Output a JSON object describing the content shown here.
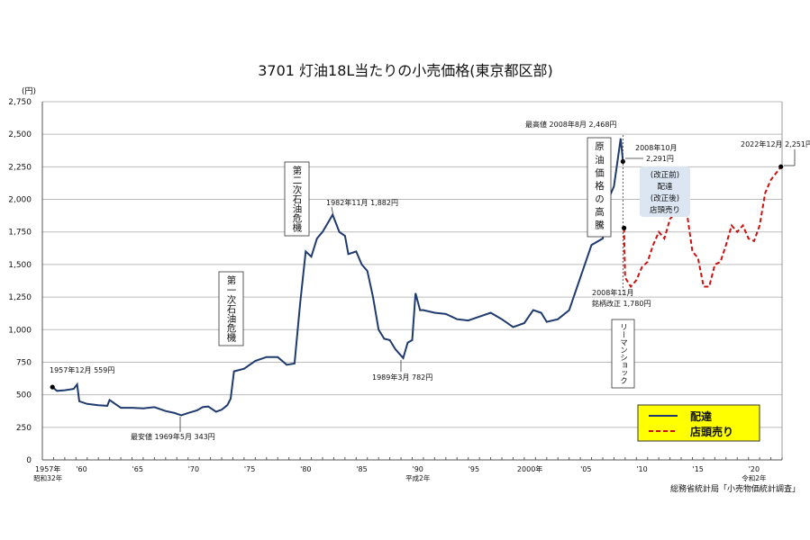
{
  "chart_data": {
    "type": "line",
    "title": "3701 灯油18L当たりの小売価格(東京都区部)",
    "ylabel": "(円)",
    "ylim": [
      0,
      2750
    ],
    "xlim": [
      1957,
      2023
    ],
    "grid": true,
    "yticks": [
      0,
      250,
      500,
      750,
      1000,
      1250,
      1500,
      1750,
      2000,
      2250,
      2500,
      2750
    ],
    "ytick_labels": [
      "0",
      "250",
      "500",
      "750",
      "1,000",
      "1,250",
      "1,500",
      "1,750",
      "2,000",
      "2,250",
      "2,500",
      "2,750"
    ],
    "xticks": [
      {
        "year": 1957,
        "label": "1957年",
        "sub": "昭和32年"
      },
      {
        "year": 1960,
        "label": "'60"
      },
      {
        "year": 1965,
        "label": "'65"
      },
      {
        "year": 1970,
        "label": "'70"
      },
      {
        "year": 1975,
        "label": "'75"
      },
      {
        "year": 1980,
        "label": "'80"
      },
      {
        "year": 1985,
        "label": "'85"
      },
      {
        "year": 1990,
        "label": "'90",
        "sub": "平成2年"
      },
      {
        "year": 1995,
        "label": "'95"
      },
      {
        "year": 2000,
        "label": "2000年"
      },
      {
        "year": 2005,
        "label": "'05"
      },
      {
        "year": 2010,
        "label": "'10"
      },
      {
        "year": 2015,
        "label": "'15"
      },
      {
        "year": 2020,
        "label": "'20",
        "sub": "令和2年"
      }
    ],
    "series": [
      {
        "name": "配達",
        "color": "#1f3a6e",
        "style": "solid",
        "x": [
          1957.9,
          1958.3,
          1959,
          1959.8,
          1960.1,
          1960.3,
          1961,
          1962,
          1962.8,
          1963,
          1964,
          1965,
          1966,
          1967,
          1968,
          1968.8,
          1969.4,
          1970,
          1970.8,
          1971.3,
          1971.8,
          1972.5,
          1973,
          1973.5,
          1973.8,
          1974.1,
          1975,
          1976,
          1977,
          1978,
          1978.8,
          1979.5,
          1980,
          1980.5,
          1981,
          1981.5,
          1982,
          1982.9,
          1983.5,
          1984,
          1984.3,
          1985,
          1985.5,
          1986,
          1986.5,
          1987,
          1987.5,
          1988,
          1988.5,
          1989.2,
          1989.6,
          1990,
          1990.3,
          1990.7,
          1991,
          1992,
          1993,
          1994,
          1995,
          1996,
          1997,
          1998,
          1999,
          2000,
          2000.8,
          2001.5,
          2002,
          2003,
          2004,
          2005,
          2006,
          2007,
          2007.5,
          2008,
          2008.6,
          2008.8
        ],
        "y": [
          559,
          530,
          535,
          545,
          580,
          450,
          430,
          420,
          415,
          460,
          400,
          400,
          395,
          405,
          375,
          360,
          343,
          360,
          380,
          405,
          410,
          370,
          385,
          420,
          470,
          680,
          700,
          760,
          790,
          790,
          730,
          740,
          1200,
          1600,
          1560,
          1700,
          1750,
          1882,
          1750,
          1720,
          1580,
          1600,
          1500,
          1450,
          1250,
          1000,
          930,
          920,
          850,
          782,
          900,
          920,
          1280,
          1150,
          1150,
          1130,
          1120,
          1080,
          1070,
          1100,
          1130,
          1080,
          1020,
          1050,
          1150,
          1130,
          1060,
          1080,
          1150,
          1400,
          1650,
          1700,
          2000,
          2100,
          2468,
          2291
        ]
      },
      {
        "name": "店頭売り",
        "color": "#cc1111",
        "style": "dashed",
        "x": [
          2008.9,
          2009,
          2009.5,
          2010,
          2010.5,
          2011,
          2011.5,
          2012,
          2012.5,
          2013,
          2013.5,
          2014,
          2014.5,
          2015,
          2015.5,
          2016,
          2016.5,
          2017,
          2017.5,
          2018,
          2018.5,
          2019,
          2019.5,
          2020,
          2020.5,
          2021,
          2021.5,
          2022,
          2022.9
        ],
        "y": [
          1780,
          1400,
          1330,
          1380,
          1480,
          1520,
          1650,
          1750,
          1700,
          1850,
          1900,
          1970,
          1900,
          1600,
          1550,
          1330,
          1330,
          1500,
          1520,
          1650,
          1800,
          1750,
          1800,
          1700,
          1680,
          1800,
          2050,
          2150,
          2251
        ]
      }
    ],
    "annotations": {
      "start": "1957年12月 559円",
      "min": "最安値 1969年5月 343円",
      "peak1982": "1982年11月 1,882円",
      "low1989": "1989年3月 782円",
      "max": "最高値 2008年8月 2,468円",
      "oct2008_a": "2008年10月",
      "oct2008_b": "2,291円",
      "nov2008_a": "2008年11月",
      "nov2008_b": "銘柄改正 1,780円",
      "dec2022": "2022年12月 2,251円",
      "oil1": "第一次石油危機",
      "oil2": "第二次石油危機",
      "crude": "原油価格の高騰",
      "lehman": "リーマンショック",
      "revision": [
        "(改正前)",
        "配達",
        "(改正後)",
        "店頭売り"
      ]
    },
    "legend": {
      "placement": "bottom-right",
      "background": "#ffff00",
      "items": [
        "配達",
        "店頭売り"
      ]
    },
    "source": "総務省統計局「小売物価統計調査」"
  }
}
